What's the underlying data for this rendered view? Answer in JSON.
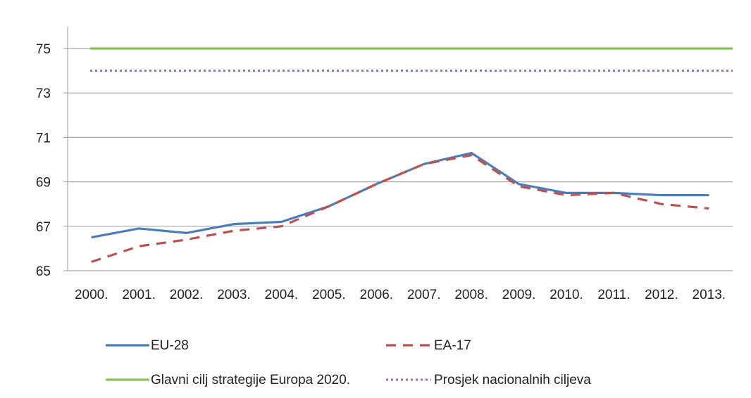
{
  "chart_data": {
    "type": "line",
    "categories": [
      "2000.",
      "2001.",
      "2002.",
      "2003.",
      "2004.",
      "2005.",
      "2006.",
      "2007.",
      "2008.",
      "2009.",
      "2010.",
      "2011.",
      "2012.",
      "2013."
    ],
    "ylim": [
      65,
      75
    ],
    "yticks": [
      "65",
      "67",
      "69",
      "71",
      "73",
      "75"
    ],
    "grid": true,
    "legend_position": "bottom",
    "series": [
      {
        "name": "EU-28",
        "color": "#4a7ebb",
        "style": "solid",
        "values": [
          66.5,
          66.9,
          66.7,
          67.1,
          67.2,
          67.9,
          68.9,
          69.8,
          70.3,
          68.9,
          68.5,
          68.5,
          68.4,
          68.4
        ]
      },
      {
        "name": "EA-17",
        "color": "#c0504d",
        "style": "dashed",
        "values": [
          65.4,
          66.1,
          66.4,
          66.8,
          67.0,
          67.9,
          68.9,
          69.8,
          70.2,
          68.8,
          68.4,
          68.5,
          68.0,
          67.8
        ]
      },
      {
        "name": "Glavni cilj strategije Europa 2020.",
        "color": "#8cc152",
        "style": "solid",
        "values": [
          75,
          75,
          75,
          75,
          75,
          75,
          75,
          75,
          75,
          75,
          75,
          75,
          75,
          75
        ]
      },
      {
        "name": "Prosjek nacionalnih ciljeva",
        "color": "#8e6fc4",
        "style": "dotted",
        "values": [
          74,
          74,
          74,
          74,
          74,
          74,
          74,
          74,
          74,
          74,
          74,
          74,
          74,
          74
        ]
      }
    ]
  }
}
